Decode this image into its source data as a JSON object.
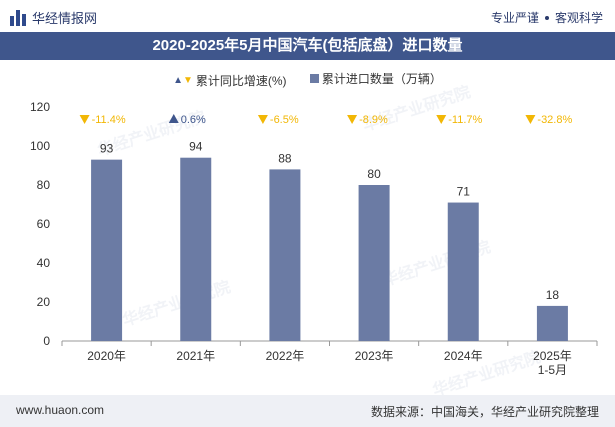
{
  "header": {
    "brand": "华经情报网",
    "tagline_left": "专业严谨",
    "tagline_right": "客观科学"
  },
  "footer": {
    "url": "www.huaon.com",
    "source": "数据来源：中国海关，华经产业研究院整理"
  },
  "watermark": "华经产业研究院",
  "colors": {
    "title_bar": "#3f568c",
    "bar": "#6b7ba4",
    "up_marker": "#3f568c",
    "down_marker": "#f2b705"
  },
  "chart_data": {
    "type": "bar",
    "title": "2020-2025年5月中国汽车(包括底盘）进口数量",
    "categories": [
      "2020年",
      "2021年",
      "2022年",
      "2023年",
      "2024年",
      "2025年 1-5月"
    ],
    "series": [
      {
        "name": "累计进口数量（万辆）",
        "values": [
          93,
          94,
          88,
          80,
          71,
          18
        ]
      }
    ],
    "growth": {
      "name": "累计同比增速(%)",
      "values": [
        -11.4,
        0.6,
        -6.5,
        -8.9,
        -11.7,
        -32.8
      ],
      "labels": [
        "-11.4%",
        "0.6%",
        "-6.5%",
        "-8.9%",
        "-11.7%",
        "-32.8%"
      ]
    },
    "ylim": [
      0,
      120
    ],
    "yticks": [
      0,
      20,
      40,
      60,
      80,
      100,
      120
    ],
    "legend_position": "top-center",
    "grid": false
  }
}
